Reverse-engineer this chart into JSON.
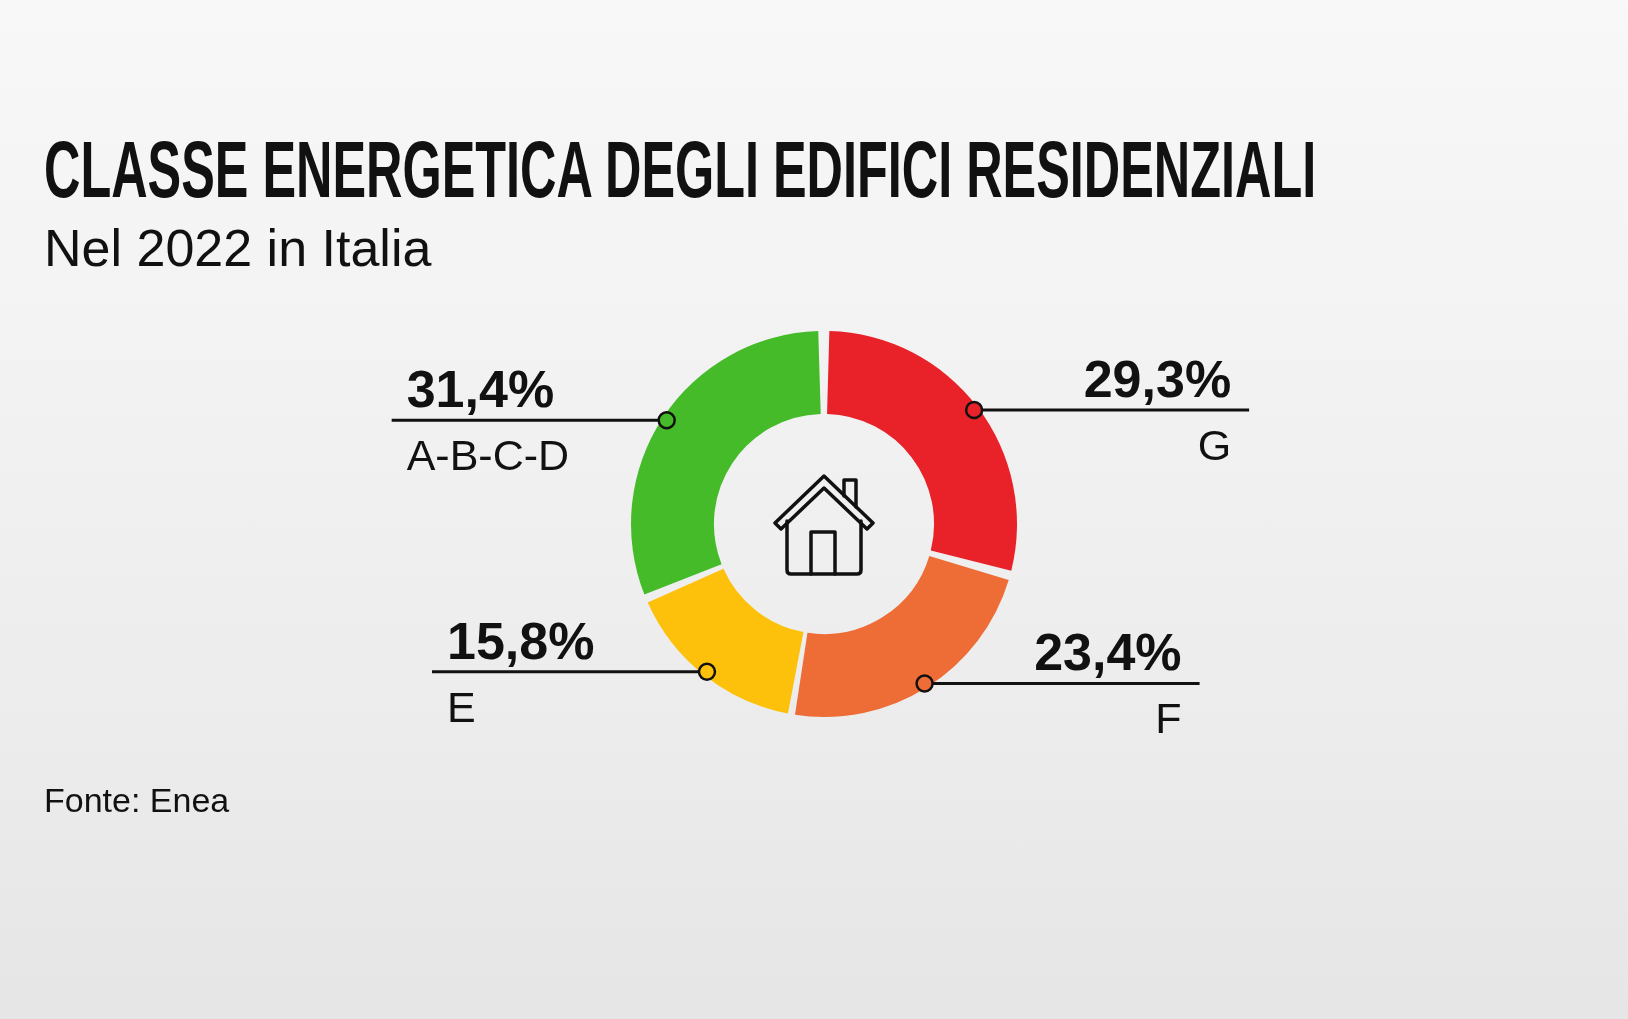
{
  "chart_data": {
    "type": "donut",
    "title": "CLASSE ENERGETICA DEGLI EDIFICI RESIDENZIALI",
    "subtitle": "Nel 2022 in Italia",
    "categories": [
      "G",
      "F",
      "E",
      "A-B-C-D"
    ],
    "values": [
      29.3,
      23.4,
      15.8,
      31.4
    ],
    "value_labels": [
      "29,3%",
      "23,4%",
      "15,8%",
      "31,4%"
    ],
    "colors": [
      "#e82228",
      "#ee6c35",
      "#fdc00b",
      "#45bb29"
    ],
    "annotations": [
      "Fonte: Enea"
    ]
  }
}
